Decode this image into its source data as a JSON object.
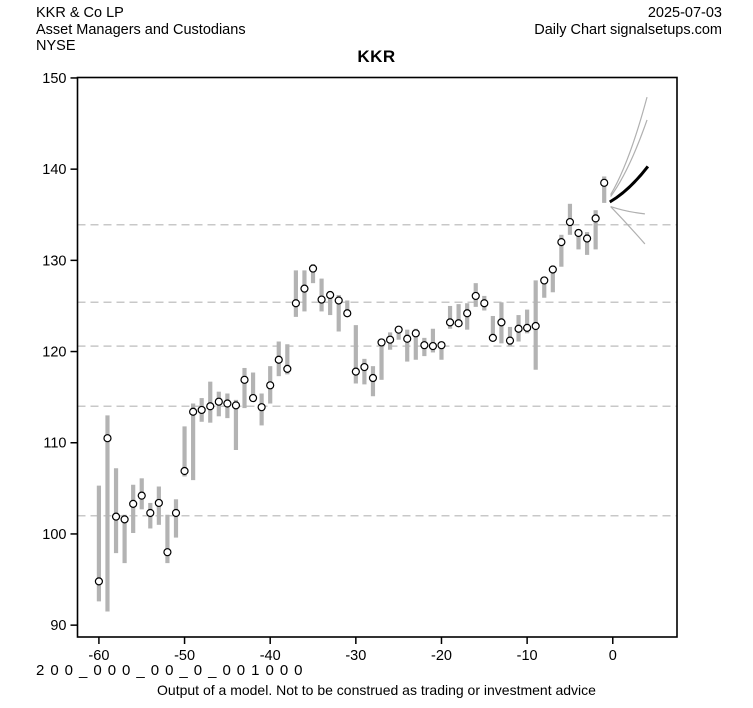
{
  "header": {
    "company": "KKR & Co LP",
    "industry": "Asset Managers and Custodians",
    "exchange": "NYSE",
    "date": "2025-07-03",
    "chart_type": "Daily Chart signalsetups.com"
  },
  "title": "KKR",
  "footer": {
    "model_code": "200_000_00_0_001000",
    "disclaimer": "Output of a model. Not to be construed as trading or investment advice"
  },
  "colors": {
    "background": "#ffffff",
    "axis": "#000000",
    "bar": "#b3b3b3",
    "close_marker_stroke": "#000000",
    "close_marker_fill": "#ffffff",
    "level_line": "#c8c8c8",
    "forecast_thin": "#b0b0b0",
    "forecast_bold": "#000000"
  },
  "chart_data": {
    "type": "bar",
    "subtype": "high-low-close",
    "title": "KKR",
    "xlabel": "",
    "ylabel": "",
    "xlim": [
      -62.5,
      7.5
    ],
    "ylim": [
      88.7,
      150.05
    ],
    "xticks": [
      -60,
      -50,
      -40,
      -30,
      -20,
      -10,
      0
    ],
    "yticks": [
      90,
      100,
      110,
      120,
      130,
      140,
      150
    ],
    "grid": "dashed-horizontal-levels-only",
    "legend": "none",
    "levels": [
      133.9,
      125.4,
      120.6,
      114.0,
      102.0
    ],
    "bars": {
      "columns": [
        "x",
        "high",
        "low",
        "close"
      ],
      "rows": [
        [
          -60,
          105.3,
          92.6,
          94.8
        ],
        [
          -59,
          113.0,
          91.5,
          110.5
        ],
        [
          -58,
          107.2,
          97.9,
          101.9
        ],
        [
          -57,
          102.1,
          96.8,
          101.6
        ],
        [
          -56,
          105.4,
          100.1,
          103.3
        ],
        [
          -55,
          106.1,
          102.7,
          104.2
        ],
        [
          -54,
          103.4,
          100.6,
          102.3
        ],
        [
          -53,
          105.2,
          101.0,
          103.4
        ],
        [
          -52,
          102.1,
          96.8,
          98.0
        ],
        [
          -51,
          103.8,
          99.6,
          102.3
        ],
        [
          -50,
          111.8,
          106.3,
          106.9
        ],
        [
          -49,
          114.3,
          105.9,
          113.4
        ],
        [
          -48,
          114.9,
          112.3,
          113.6
        ],
        [
          -47,
          116.7,
          112.2,
          114.0
        ],
        [
          -46,
          115.6,
          112.9,
          114.5
        ],
        [
          -45,
          115.4,
          112.7,
          114.3
        ],
        [
          -44,
          114.7,
          109.2,
          114.1
        ],
        [
          -43,
          118.2,
          113.8,
          116.9
        ],
        [
          -42,
          117.7,
          114.7,
          114.9
        ],
        [
          -41,
          115.4,
          111.9,
          113.9
        ],
        [
          -40,
          118.4,
          114.3,
          116.3
        ],
        [
          -39,
          121.1,
          117.3,
          119.1
        ],
        [
          -38,
          120.8,
          117.5,
          118.1
        ],
        [
          -37,
          128.9,
          123.8,
          125.3
        ],
        [
          -36,
          128.9,
          124.4,
          126.9
        ],
        [
          -35,
          129.6,
          127.5,
          129.1
        ],
        [
          -34,
          128.0,
          124.4,
          125.7
        ],
        [
          -33,
          126.6,
          124.0,
          126.2
        ],
        [
          -32,
          126.2,
          122.2,
          125.6
        ],
        [
          -31,
          125.6,
          123.8,
          124.2
        ],
        [
          -30,
          122.9,
          116.5,
          117.8
        ],
        [
          -29,
          119.2,
          116.4,
          118.3
        ],
        [
          -28,
          118.4,
          115.1,
          117.1
        ],
        [
          -27,
          121.4,
          116.9,
          121.0
        ],
        [
          -26,
          122.1,
          120.2,
          121.3
        ],
        [
          -25,
          122.8,
          121.3,
          122.4
        ],
        [
          -24,
          122.4,
          118.9,
          121.4
        ],
        [
          -23,
          122.5,
          119.1,
          122.0
        ],
        [
          -22,
          121.5,
          119.5,
          120.7
        ],
        [
          -21,
          122.5,
          119.9,
          120.6
        ],
        [
          -20,
          121.1,
          119.1,
          120.7
        ],
        [
          -19,
          125.0,
          122.5,
          123.2
        ],
        [
          -18,
          125.2,
          122.8,
          123.1
        ],
        [
          -17,
          125.3,
          122.4,
          124.2
        ],
        [
          -16,
          127.5,
          124.9,
          126.1
        ],
        [
          -15,
          126.1,
          124.5,
          125.3
        ],
        [
          -14,
          123.9,
          121.1,
          121.5
        ],
        [
          -13,
          125.4,
          120.9,
          123.2
        ],
        [
          -12,
          122.7,
          120.6,
          121.2
        ],
        [
          -11,
          124.0,
          121.1,
          122.5
        ],
        [
          -10,
          124.6,
          122.0,
          122.6
        ],
        [
          -9,
          127.8,
          118.0,
          122.8
        ],
        [
          -8,
          128.0,
          125.9,
          127.8
        ],
        [
          -7,
          129.4,
          126.5,
          129.0
        ],
        [
          -6,
          132.8,
          129.3,
          132.0
        ],
        [
          -5,
          136.2,
          132.8,
          134.2
        ],
        [
          -4,
          133.4,
          131.2,
          133.0
        ],
        [
          -3,
          133.1,
          130.6,
          132.4
        ],
        [
          -2,
          135.5,
          131.2,
          134.6
        ],
        [
          -1,
          139.2,
          136.3,
          138.5
        ]
      ]
    },
    "forecast_lines": [
      {
        "weight": "thin",
        "points": [
          [
            -0.25,
            137.2
          ],
          [
            1.9,
            141.6
          ],
          [
            4.0,
            147.9
          ]
        ]
      },
      {
        "weight": "thin",
        "points": [
          [
            -0.25,
            137.0
          ],
          [
            1.9,
            140.5
          ],
          [
            4.0,
            145.4
          ]
        ]
      },
      {
        "weight": "bold",
        "points": [
          [
            -0.35,
            136.4
          ],
          [
            1.9,
            138.0
          ],
          [
            4.1,
            140.3
          ]
        ]
      },
      {
        "weight": "thin",
        "points": [
          [
            -0.25,
            135.9
          ],
          [
            1.7,
            135.4
          ],
          [
            3.75,
            135.1
          ]
        ]
      },
      {
        "weight": "thin",
        "points": [
          [
            -0.25,
            135.9
          ],
          [
            1.75,
            133.9
          ],
          [
            3.75,
            131.8
          ]
        ]
      }
    ]
  }
}
